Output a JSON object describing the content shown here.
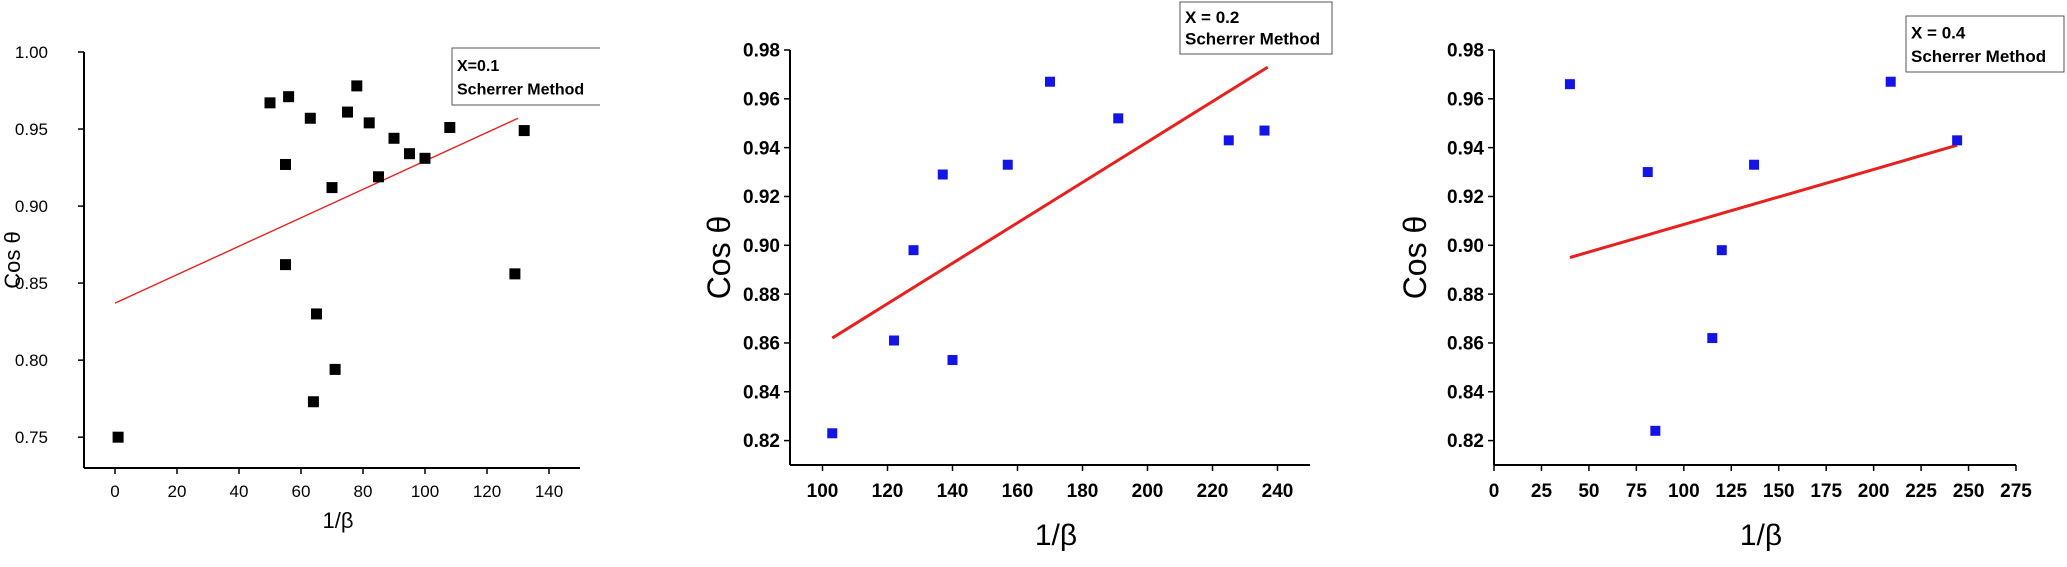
{
  "chart_data": [
    {
      "type": "scatter",
      "xlabel": "1/β",
      "ylabel": "Cos θ",
      "legend": {
        "line1": "X=0.1",
        "line2": "Scherrer Method"
      },
      "xlim": [
        -10,
        150
      ],
      "ylim": [
        0.73,
        1.0
      ],
      "xticks": [
        0,
        20,
        40,
        60,
        80,
        100,
        120,
        140
      ],
      "xtick_labels": [
        "0",
        "20",
        "40",
        "60",
        "80",
        "100",
        "120",
        "140"
      ],
      "yticks": [
        0.75,
        0.8,
        0.85,
        0.9,
        0.95,
        1.0
      ],
      "ytick_labels": [
        "0.75",
        "0.80",
        "0.85",
        "0.90",
        "0.95",
        "1.00"
      ],
      "marker_color": "#000000",
      "line_color": "#e8201e",
      "points": [
        [
          1,
          0.75
        ],
        [
          50,
          0.967
        ],
        [
          55,
          0.927
        ],
        [
          56,
          0.971
        ],
        [
          55,
          0.862
        ],
        [
          63,
          0.957
        ],
        [
          64,
          0.773
        ],
        [
          65,
          0.83
        ],
        [
          70,
          0.912
        ],
        [
          71,
          0.794
        ],
        [
          75,
          0.961
        ],
        [
          78,
          0.978
        ],
        [
          82,
          0.954
        ],
        [
          85,
          0.919
        ],
        [
          90,
          0.944
        ],
        [
          95,
          0.934
        ],
        [
          100,
          0.931
        ],
        [
          108,
          0.951
        ],
        [
          129,
          0.856
        ],
        [
          132,
          0.949
        ]
      ],
      "fit": [
        [
          0,
          0.837
        ],
        [
          130,
          0.957
        ]
      ]
    },
    {
      "type": "scatter",
      "xlabel": "1/β",
      "ylabel": "Cos θ",
      "legend": {
        "line1": "X = 0.2",
        "line2": "Scherrer Method"
      },
      "xlim": [
        90,
        250
      ],
      "ylim": [
        0.81,
        0.98
      ],
      "xticks": [
        100,
        120,
        140,
        160,
        180,
        200,
        220,
        240
      ],
      "xtick_labels": [
        "100",
        "120",
        "140",
        "160",
        "180",
        "200",
        "220",
        "240"
      ],
      "yticks": [
        0.82,
        0.84,
        0.86,
        0.88,
        0.9,
        0.92,
        0.94,
        0.96,
        0.98
      ],
      "ytick_labels": [
        "0.82",
        "0.84",
        "0.86",
        "0.88",
        "0.90",
        "0.92",
        "0.94",
        "0.96",
        "0.98"
      ],
      "marker_color": "#1414e6",
      "line_color": "#e8201e",
      "points": [
        [
          103,
          0.823
        ],
        [
          122,
          0.861
        ],
        [
          128,
          0.898
        ],
        [
          137,
          0.929
        ],
        [
          140,
          0.853
        ],
        [
          157,
          0.933
        ],
        [
          170,
          0.967
        ],
        [
          191,
          0.952
        ],
        [
          225,
          0.943
        ],
        [
          236,
          0.947
        ]
      ],
      "fit": [
        [
          103,
          0.862
        ],
        [
          237,
          0.973
        ]
      ]
    },
    {
      "type": "scatter",
      "xlabel": "1/β",
      "ylabel": "Cos θ",
      "legend": {
        "line1": "X = 0.4",
        "line2": "Scherrer Method"
      },
      "xlim": [
        0,
        275
      ],
      "ylim": [
        0.81,
        0.98
      ],
      "xticks": [
        0,
        25,
        50,
        75,
        100,
        125,
        150,
        175,
        200,
        225,
        250,
        275
      ],
      "xtick_labels": [
        "0",
        "25",
        "50",
        "75",
        "100",
        "125",
        "150",
        "175",
        "200",
        "225",
        "250",
        "275"
      ],
      "yticks": [
        0.82,
        0.84,
        0.86,
        0.88,
        0.9,
        0.92,
        0.94,
        0.96,
        0.98
      ],
      "ytick_labels": [
        "0.82",
        "0.84",
        "0.86",
        "0.88",
        "0.90",
        "0.92",
        "0.94",
        "0.96",
        "0.98"
      ],
      "marker_color": "#1414e6",
      "line_color": "#e8201e",
      "points": [
        [
          40,
          0.966
        ],
        [
          81,
          0.93
        ],
        [
          85,
          0.824
        ],
        [
          115,
          0.862
        ],
        [
          120,
          0.898
        ],
        [
          137,
          0.933
        ],
        [
          209,
          0.967
        ],
        [
          244,
          0.943
        ]
      ],
      "fit": [
        [
          40,
          0.895
        ],
        [
          244,
          0.941
        ]
      ]
    }
  ]
}
